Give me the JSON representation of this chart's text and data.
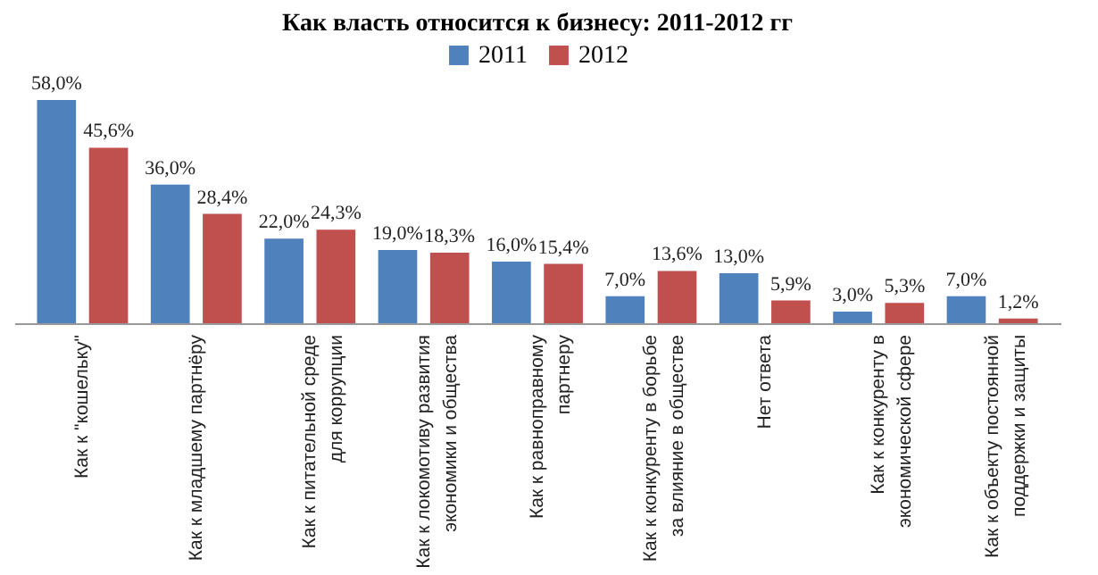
{
  "chart_data": {
    "type": "bar",
    "title": "Как власть относится к бизнесу: 2011-2012 гг",
    "categories": [
      "Как к \"кошельку\"",
      "Как к младшему партнёру",
      "Как к питательной среде для коррупции",
      "Как к локомотиву развития экономики и общества",
      "Как к равноправному партнеру",
      "Как к конкуренту в борьбе за влияние в обществе",
      "Нет ответа",
      "Как к конкуренту в экономической сфере",
      "Как к объекту постоянной поддержки и защиты"
    ],
    "series": [
      {
        "name": "2011",
        "color": "#4f81bd",
        "values": [
          58.0,
          36.0,
          22.0,
          19.0,
          16.0,
          7.0,
          13.0,
          3.0,
          7.0
        ],
        "value_labels": [
          "58,0%",
          "36,0%",
          "22,0%",
          "19,0%",
          "16,0%",
          "7,0%",
          "13,0%",
          "3,0%",
          "7,0%"
        ]
      },
      {
        "name": "2012",
        "color": "#c0504d",
        "values": [
          45.6,
          28.4,
          24.3,
          18.3,
          15.4,
          13.6,
          5.9,
          5.3,
          1.2
        ],
        "value_labels": [
          "45,6%",
          "28,4%",
          "24,3%",
          "18,3%",
          "15,4%",
          "13,6%",
          "5,9%",
          "5,3%",
          "1,2%"
        ]
      }
    ],
    "legend": "top",
    "grid": false
  }
}
